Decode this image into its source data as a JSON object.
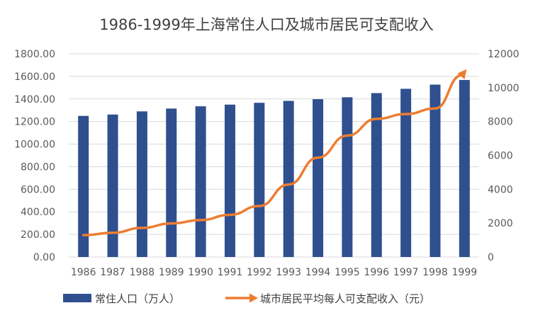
{
  "chart_data": {
    "type": "bar",
    "title": "1986-1999年上海常住人口及城市居民可支配收入",
    "categories": [
      "1986",
      "1987",
      "1988",
      "1989",
      "1990",
      "1991",
      "1992",
      "1993",
      "1994",
      "1995",
      "1996",
      "1997",
      "1998",
      "1999"
    ],
    "y_left": {
      "range": [
        0,
        1800
      ],
      "ticks": [
        "0.00",
        "200.00",
        "400.00",
        "600.00",
        "800.00",
        "1000.00",
        "1200.00",
        "1400.00",
        "1600.00",
        "1800.00"
      ]
    },
    "y_right": {
      "range": [
        0,
        12000
      ],
      "ticks": [
        "0",
        "2000",
        "4000",
        "6000",
        "8000",
        "10000",
        "12000"
      ]
    },
    "grid": true,
    "legend_position": "bottom",
    "series": [
      {
        "name": "常住人口（万人）",
        "type": "bar",
        "axis": "left",
        "color": "#2f4f8f",
        "values": [
          1250,
          1262,
          1290,
          1315,
          1335,
          1350,
          1366,
          1383,
          1398,
          1415,
          1452,
          1490,
          1527,
          1568
        ]
      },
      {
        "name": "城市居民平均每人可支配收入（元）",
        "type": "line",
        "axis": "right",
        "color": "#ed7d31",
        "values": [
          1290,
          1430,
          1720,
          1980,
          2180,
          2490,
          3010,
          4280,
          5870,
          7170,
          8160,
          8440,
          8770,
          10930
        ]
      }
    ]
  }
}
